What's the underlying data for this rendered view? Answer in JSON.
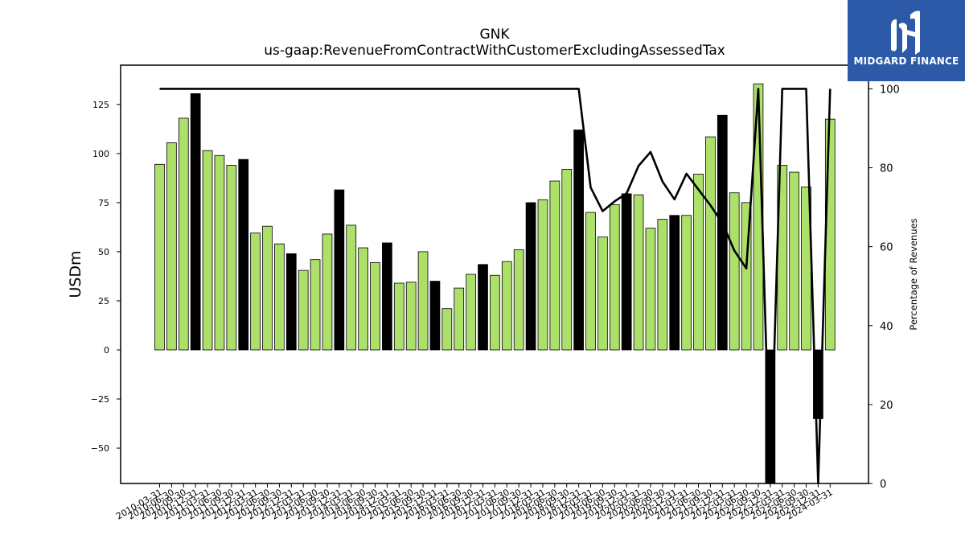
{
  "chart_data": {
    "type": "bar",
    "title": "GNK",
    "subtitle": "us-gaap:RevenueFromContractWithCustomerExcludingAssessedTax",
    "ylabel": "USDm",
    "y2label": "Percentage of Revenues",
    "ylim": [
      -68,
      145
    ],
    "y2lim": [
      0,
      106
    ],
    "yticks": [
      -50,
      -25,
      0,
      25,
      50,
      75,
      100,
      125
    ],
    "y2ticks": [
      0,
      20,
      40,
      60,
      80,
      100
    ],
    "legend": "none",
    "grid": false,
    "colors": {
      "quarter": "#addf6b",
      "annual": "#000000",
      "line": "#000000"
    },
    "categories": [
      "2010-03-31",
      "2010-06-30",
      "2010-09-30",
      "2010-12-31",
      "2011-03-31",
      "2011-06-30",
      "2011-09-30",
      "2011-12-31",
      "2012-03-31",
      "2012-06-30",
      "2012-09-30",
      "2012-12-31",
      "2013-03-31",
      "2013-06-30",
      "2013-09-30",
      "2013-12-31",
      "2014-03-31",
      "2014-06-30",
      "2014-09-30",
      "2014-12-31",
      "2015-03-31",
      "2015-06-30",
      "2015-09-30",
      "2015-12-31",
      "2016-03-31",
      "2016-06-30",
      "2016-09-30",
      "2016-12-31",
      "2017-03-31",
      "2017-06-30",
      "2017-09-30",
      "2017-12-31",
      "2018-03-31",
      "2018-06-30",
      "2018-09-30",
      "2018-12-31",
      "2019-03-31",
      "2019-06-30",
      "2019-09-30",
      "2019-12-31",
      "2020-03-31",
      "2020-06-30",
      "2020-09-30",
      "2020-12-31",
      "2021-03-31",
      "2021-06-30",
      "2021-09-30",
      "2021-12-31",
      "2022-03-31",
      "2022-06-30",
      "2022-09-30",
      "2022-12-31",
      "2023-03-31",
      "2023-06-30",
      "2023-09-30",
      "2023-12-31",
      "2024-03-31"
    ],
    "series": [
      {
        "values": [
          94.5,
          105.5,
          118,
          130.5,
          101.5,
          99,
          94,
          97,
          59.5,
          63,
          54,
          49,
          40.5,
          46,
          59,
          81.5,
          63.5,
          52,
          44.5,
          54.5,
          34,
          34.5,
          50,
          35,
          21,
          31.5,
          38.5,
          43.5,
          38,
          45,
          51,
          75,
          76.5,
          86,
          92,
          112,
          70,
          57.5,
          74,
          79.5,
          79,
          62,
          66.5,
          68.5,
          68.5,
          89.5,
          108.5,
          119.5,
          80,
          75,
          135.5,
          -68,
          94,
          90.5,
          83,
          -35,
          117.5
        ],
        "annual": [
          false,
          false,
          false,
          true,
          false,
          false,
          false,
          true,
          false,
          false,
          false,
          true,
          false,
          false,
          false,
          true,
          false,
          false,
          false,
          true,
          false,
          false,
          false,
          true,
          false,
          false,
          false,
          true,
          false,
          false,
          false,
          true,
          false,
          false,
          false,
          true,
          false,
          false,
          false,
          true,
          false,
          false,
          false,
          true,
          false,
          false,
          false,
          true,
          false,
          false,
          false,
          true,
          false,
          false,
          false,
          true,
          false
        ]
      },
      {
        "axis": "right",
        "values": [
          100,
          100,
          100,
          100,
          100,
          100,
          100,
          100,
          100,
          100,
          100,
          100,
          100,
          100,
          100,
          100,
          100,
          100,
          100,
          100,
          100,
          100,
          100,
          100,
          100,
          100,
          100,
          100,
          100,
          100,
          100,
          100,
          100,
          100,
          100,
          100,
          75,
          69,
          71.5,
          73.5,
          80.5,
          84,
          76.5,
          72,
          78.5,
          74.5,
          70.5,
          66,
          59,
          54.5,
          100,
          0,
          100,
          100,
          100,
          0,
          100
        ]
      }
    ]
  },
  "logo": {
    "text": "MIDGARD FINANCE"
  }
}
